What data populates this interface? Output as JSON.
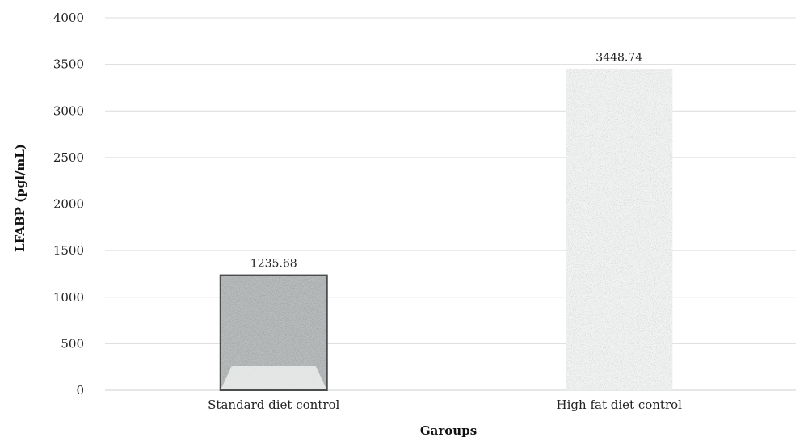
{
  "chart_data": {
    "type": "bar",
    "title": "",
    "xlabel": "Garoups",
    "ylabel": "LFABP (pgl/mL)",
    "ylim": [
      0,
      4000
    ],
    "yticks": [
      0,
      500,
      1000,
      1500,
      2000,
      2500,
      3000,
      3500,
      4000
    ],
    "grid": true,
    "categories": [
      "Standard diet control",
      "High fat diet control"
    ],
    "values": [
      1235.68,
      3448.74
    ],
    "data_labels": [
      "1235.68",
      "3448.74"
    ]
  }
}
